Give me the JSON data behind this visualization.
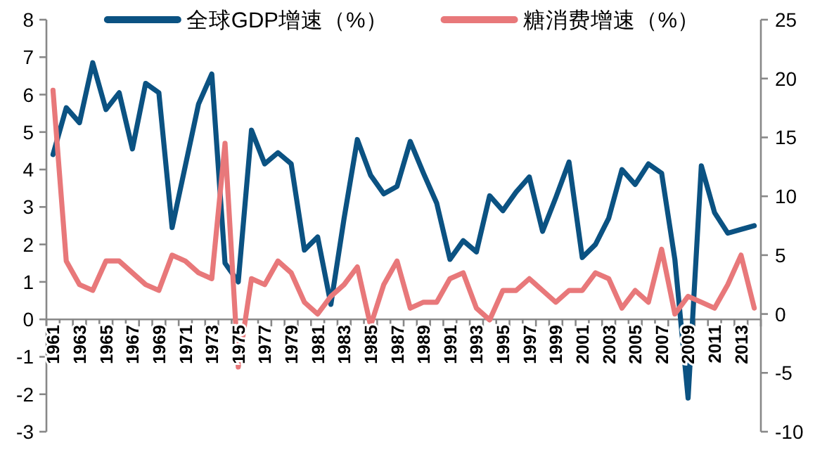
{
  "chart_data": {
    "type": "line",
    "categories": [
      "1961",
      null,
      "1963",
      null,
      "1965",
      null,
      "1967",
      null,
      "1969",
      null,
      "1971",
      null,
      "1973",
      null,
      "1975",
      null,
      "1977",
      null,
      "1979",
      null,
      "1981",
      null,
      "1983",
      null,
      "1985",
      null,
      "1987",
      null,
      "1989",
      null,
      "1991",
      null,
      "1993",
      null,
      "1995",
      null,
      "1997",
      null,
      "1999",
      null,
      "2001",
      null,
      "2003",
      null,
      "2005",
      null,
      "2007",
      null,
      "2009",
      null,
      "2011",
      null,
      "2013",
      null
    ],
    "series": [
      {
        "name": "全球GDP增速（%）",
        "color": "#0b5282",
        "values": [
          4.4,
          5.65,
          5.25,
          6.85,
          5.6,
          6.05,
          4.55,
          6.3,
          6.05,
          2.45,
          4.1,
          5.75,
          6.55,
          1.5,
          1.0,
          5.05,
          4.15,
          4.45,
          4.15,
          1.85,
          2.2,
          0.4,
          2.7,
          4.8,
          3.85,
          3.35,
          3.55,
          4.75,
          3.9,
          3.1,
          1.6,
          2.1,
          1.8,
          3.3,
          2.9,
          3.4,
          3.8,
          2.35,
          3.25,
          4.2,
          1.65,
          2.0,
          2.7,
          4.0,
          3.6,
          4.15,
          3.9,
          1.6,
          -2.1,
          4.1,
          2.85,
          2.3,
          2.4,
          2.5
        ]
      },
      {
        "name": "糖消费增速（%）",
        "color": "#e8787a",
        "axis": "y2",
        "values": [
          19,
          4.5,
          2.5,
          2,
          4.5,
          4.5,
          3.5,
          2.5,
          2,
          5,
          4.5,
          3.5,
          3,
          14.5,
          -4.5,
          3,
          2.5,
          4.5,
          3.5,
          1,
          0,
          1.5,
          2.5,
          4,
          -1,
          2.5,
          4.5,
          0.5,
          1,
          1,
          3,
          3.5,
          0.5,
          -0.5,
          2,
          2,
          3,
          2,
          1,
          2,
          2,
          3.5,
          3,
          0.5,
          2,
          1,
          5.5,
          0,
          1.5,
          1,
          0.5,
          2.5,
          5,
          0.5
        ]
      }
    ],
    "ylim": [
      -3,
      8
    ],
    "yticks": [
      -3,
      -2,
      -1,
      0,
      1,
      2,
      3,
      4,
      5,
      6,
      7,
      8
    ],
    "y2lim": [
      -10,
      25
    ],
    "y2ticks": [
      -10,
      -5,
      0,
      5,
      10,
      15,
      20,
      25
    ],
    "grid": false,
    "legend": "top"
  }
}
